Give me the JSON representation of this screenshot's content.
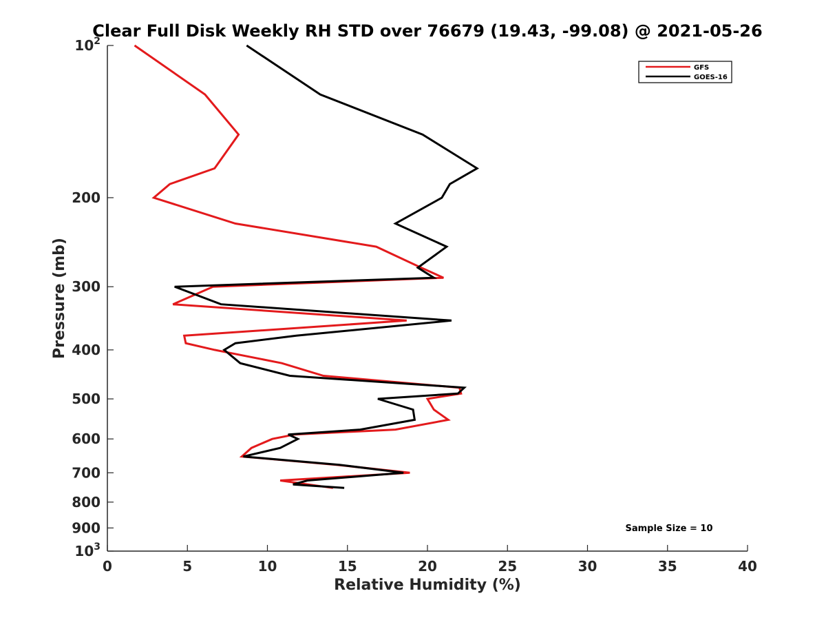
{
  "chart_data": {
    "type": "line",
    "title": "Clear Full Disk Weekly RH STD over 76679 (19.43, -99.08) @ 2021-05-26",
    "xlabel": "Relative Humidity (%)",
    "ylabel": "Pressure (mb)",
    "xlim": [
      0,
      40
    ],
    "ylim": [
      100,
      1000
    ],
    "y_scale": "log",
    "y_reversed": true,
    "x_ticks": [
      "0",
      "5",
      "10",
      "15",
      "20",
      "25",
      "30",
      "35",
      "40"
    ],
    "y_ticks": [
      {
        "value": 100,
        "base": "10",
        "exp": "2"
      },
      {
        "value": 200,
        "label": "200"
      },
      {
        "value": 300,
        "label": "300"
      },
      {
        "value": 400,
        "label": "400"
      },
      {
        "value": 500,
        "label": "500"
      },
      {
        "value": 600,
        "label": "600"
      },
      {
        "value": 700,
        "label": "700"
      },
      {
        "value": 800,
        "label": "800"
      },
      {
        "value": 900,
        "label": "900"
      },
      {
        "value": 1000,
        "base": "10",
        "exp": "3"
      }
    ],
    "legend_position": "top-right",
    "annotation": "Sample Size = 10",
    "series": [
      {
        "name": "GFS",
        "color": "#e31a1c",
        "points": [
          [
            1.7,
            100
          ],
          [
            6.1,
            125
          ],
          [
            8.2,
            150
          ],
          [
            6.7,
            175
          ],
          [
            3.9,
            188
          ],
          [
            2.9,
            200
          ],
          [
            8.0,
            225
          ],
          [
            16.8,
            250
          ],
          [
            19.6,
            275
          ],
          [
            21.0,
            288
          ],
          [
            6.6,
            300
          ],
          [
            4.1,
            325
          ],
          [
            18.7,
            350
          ],
          [
            4.8,
            375
          ],
          [
            4.9,
            388
          ],
          [
            6.7,
            400
          ],
          [
            10.9,
            425
          ],
          [
            13.5,
            450
          ],
          [
            22.0,
            475
          ],
          [
            22.1,
            488
          ],
          [
            20.0,
            500
          ],
          [
            20.4,
            525
          ],
          [
            21.3,
            550
          ],
          [
            18.0,
            575
          ],
          [
            11.7,
            588
          ],
          [
            10.3,
            600
          ],
          [
            9.0,
            625
          ],
          [
            8.4,
            650
          ],
          [
            14.3,
            675
          ],
          [
            18.9,
            700
          ],
          [
            10.8,
            725
          ],
          [
            14.1,
            750
          ]
        ]
      },
      {
        "name": "GOES-16",
        "color": "#000000",
        "points": [
          [
            8.7,
            100
          ],
          [
            13.3,
            125
          ],
          [
            19.7,
            150
          ],
          [
            23.1,
            175
          ],
          [
            21.4,
            188
          ],
          [
            20.9,
            200
          ],
          [
            18.0,
            225
          ],
          [
            21.2,
            250
          ],
          [
            19.4,
            275
          ],
          [
            20.4,
            288
          ],
          [
            4.2,
            300
          ],
          [
            7.1,
            325
          ],
          [
            21.5,
            350
          ],
          [
            11.8,
            375
          ],
          [
            8.0,
            388
          ],
          [
            7.3,
            400
          ],
          [
            8.3,
            425
          ],
          [
            11.4,
            450
          ],
          [
            22.3,
            475
          ],
          [
            21.9,
            488
          ],
          [
            16.9,
            500
          ],
          [
            19.1,
            525
          ],
          [
            19.2,
            550
          ],
          [
            15.8,
            575
          ],
          [
            11.3,
            588
          ],
          [
            11.9,
            600
          ],
          [
            10.8,
            625
          ],
          [
            8.5,
            650
          ],
          [
            14.5,
            675
          ],
          [
            18.5,
            700
          ],
          [
            12.5,
            725
          ],
          [
            11.6,
            738
          ],
          [
            14.8,
            750
          ]
        ]
      }
    ]
  }
}
